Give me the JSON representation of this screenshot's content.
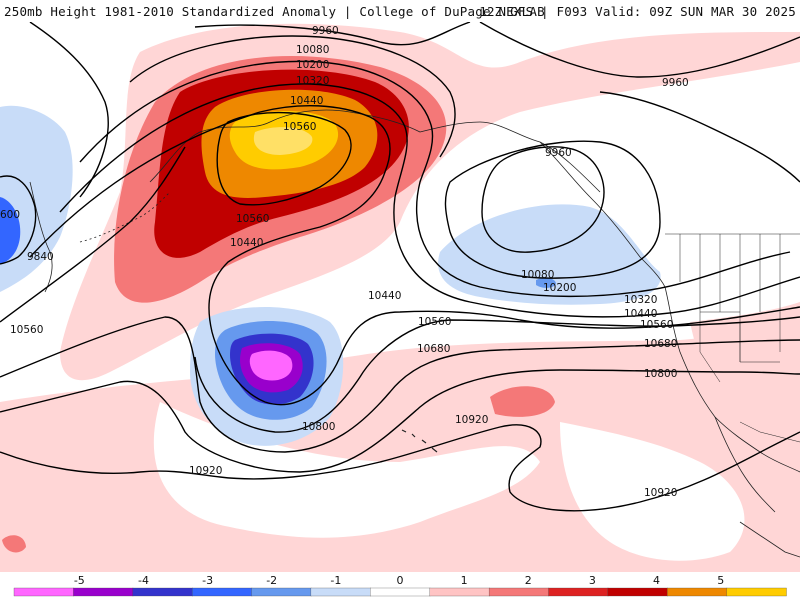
{
  "header": {
    "left_title": "250mb Height 1981-2010 Standardized Anomaly | College of DuPage NEXLAB",
    "right_title": "12Z GFS | F093 Valid: 09Z SUN MAR 30 2025"
  },
  "contour_labels": {
    "c9960_a": "9960",
    "c9960_b": "9960",
    "c9960_c": "9960",
    "c10080_a": "10080",
    "c10080_b": "10080",
    "c10200_a": "10200",
    "c10200_b": "10200",
    "c10320_a": "10320",
    "c10320_b": "10320",
    "c10440_a": "10440",
    "c10440_b": "10440",
    "c10440_c": "10440",
    "c10440_d": "10440",
    "c10560_a": "10560",
    "c10560_b": "10560",
    "c10560_c": "10560",
    "c10560_d": "10560",
    "c10560_e": "10560",
    "c10680_a": "10680",
    "c10680_b": "10680",
    "c10800_a": "10800",
    "c10800_b": "10800",
    "c10920_a": "10920",
    "c10920_b": "10920",
    "c10920_c": "10920",
    "c9840": "9840",
    "c600": "600"
  },
  "colorbar": {
    "ticks": [
      "-5",
      "-4",
      "-3",
      "-2",
      "-1",
      "0",
      "1",
      "2",
      "3",
      "4",
      "5"
    ],
    "colors": [
      "#ff66ff",
      "#9900cc",
      "#3333cc",
      "#3366ff",
      "#6699ee",
      "#c8dcf8",
      "#ffffff",
      "#ffc4c4",
      "#f47878",
      "#dd2222",
      "#c00000",
      "#ee8800",
      "#ffcc00"
    ]
  }
}
